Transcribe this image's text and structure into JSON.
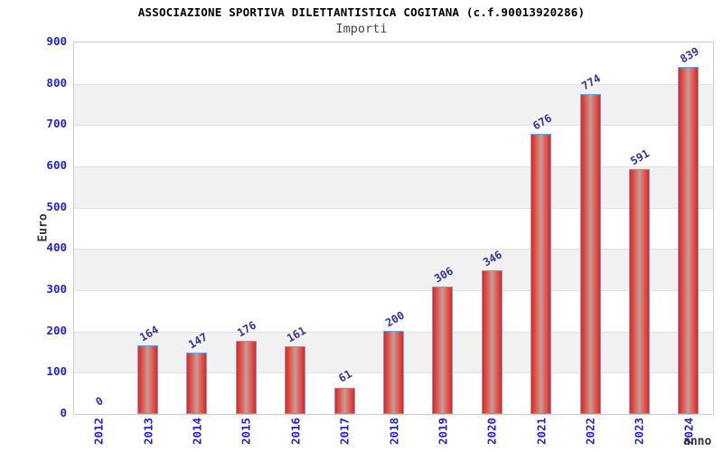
{
  "header": {
    "title": "ASSOCIAZIONE SPORTIVA DILETTANTISTICA COGITANA (c.f.90013920286)",
    "subtitle": "Importi"
  },
  "chart_data": {
    "type": "bar",
    "title": "ASSOCIAZIONE SPORTIVA DILETTANTISTICA COGITANA (c.f.90013920286)",
    "subtitle": "Importi",
    "categories": [
      "2012",
      "2013",
      "2014",
      "2015",
      "2016",
      "2017",
      "2018",
      "2019",
      "2020",
      "2021",
      "2022",
      "2023",
      "2024"
    ],
    "values": [
      0,
      164,
      147,
      176,
      161,
      61,
      200,
      306,
      346,
      676,
      774,
      591,
      839
    ],
    "bar_value_labels": [
      "0",
      "164",
      "147",
      "176",
      "161",
      "61",
      "200",
      "306",
      "346",
      "676",
      "774",
      "591",
      "839"
    ],
    "xlabel": "anno",
    "ylabel": "Euro",
    "ylim": [
      0,
      900
    ],
    "yticks": [
      0,
      100,
      200,
      300,
      400,
      500,
      600,
      700,
      800,
      900
    ],
    "grid": "horizontal alternating bands",
    "legend_position": "none"
  },
  "colors": {
    "tick_label_blue": "#2222cc",
    "value_label_navy": "#333399",
    "bar_fill_edge_red": "#e8231a",
    "bar_fill_center": "#c59c99",
    "bar_border_blue": "#64a4e8",
    "band_gray": "#f1f1f1",
    "plot_border": "#cccccc",
    "axis_title_dark": "#333333",
    "background": "#ffffff"
  }
}
